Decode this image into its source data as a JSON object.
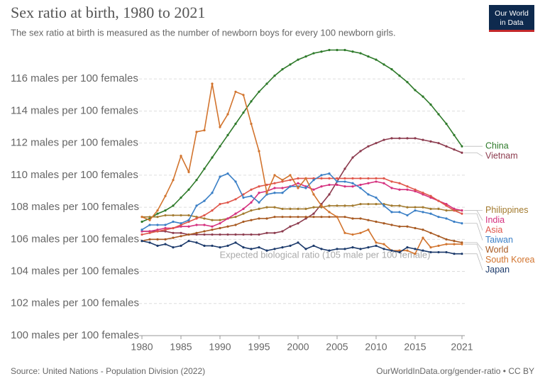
{
  "chart_data": {
    "type": "line",
    "title": "Sex ratio at birth, 1980 to 2021",
    "subtitle": "The sex ratio at birth is measured as the number of newborn boys for every 100 newborn girls.",
    "source": "Source: United Nations - Population Division (2022)",
    "credit": "OurWorldInData.org/gender-ratio • CC BY",
    "logo": [
      "Our World",
      "in Data"
    ],
    "annotation": "Expected biological ratio (105 male per 100 female)",
    "xlim": [
      1980,
      2021
    ],
    "xticks": [
      1980,
      1985,
      1990,
      1995,
      2000,
      2005,
      2010,
      2015,
      2021
    ],
    "ylim": [
      100,
      118
    ],
    "yticks": [
      {
        "value": 100,
        "label": "100 males per 100 females"
      },
      {
        "value": 102,
        "label": "102 males per 100 females"
      },
      {
        "value": 104,
        "label": "104 males per 100 females"
      },
      {
        "value": 106,
        "label": "106 males per 100 females"
      },
      {
        "value": 108,
        "label": "108 males per 100 females"
      },
      {
        "value": 110,
        "label": "110 males per 100 females"
      },
      {
        "value": 112,
        "label": "112 males per 100 females"
      },
      {
        "value": 114,
        "label": "114 males per 100 females"
      },
      {
        "value": 116,
        "label": "116 males per 100 females"
      }
    ],
    "grid": true,
    "x": [
      1980,
      1981,
      1982,
      1983,
      1984,
      1985,
      1986,
      1987,
      1988,
      1989,
      1990,
      1991,
      1992,
      1993,
      1994,
      1995,
      1996,
      1997,
      1998,
      1999,
      2000,
      2001,
      2002,
      2003,
      2004,
      2005,
      2006,
      2007,
      2008,
      2009,
      2010,
      2011,
      2012,
      2013,
      2014,
      2015,
      2016,
      2017,
      2018,
      2019,
      2020,
      2021
    ],
    "series": [
      {
        "name": "China",
        "color": "#2e7a2a",
        "values": [
          107.1,
          107.3,
          107.6,
          107.8,
          108.1,
          108.6,
          109.1,
          109.7,
          110.4,
          111.1,
          111.8,
          112.5,
          113.2,
          113.9,
          114.6,
          115.2,
          115.7,
          116.2,
          116.6,
          116.9,
          117.2,
          117.4,
          117.6,
          117.7,
          117.8,
          117.8,
          117.8,
          117.7,
          117.6,
          117.4,
          117.2,
          116.9,
          116.6,
          116.2,
          115.8,
          115.3,
          114.9,
          114.4,
          113.8,
          113.2,
          112.5,
          111.8
        ]
      },
      {
        "name": "Vietnam",
        "color": "#8c3b4e",
        "values": [
          106.5,
          106.5,
          106.5,
          106.5,
          106.4,
          106.4,
          106.3,
          106.3,
          106.3,
          106.3,
          106.3,
          106.3,
          106.3,
          106.3,
          106.3,
          106.3,
          106.4,
          106.4,
          106.5,
          106.8,
          107.0,
          107.3,
          107.6,
          108.2,
          108.8,
          109.6,
          110.4,
          111.1,
          111.5,
          111.8,
          112.0,
          112.2,
          112.3,
          112.3,
          112.3,
          112.3,
          112.2,
          112.1,
          112.0,
          111.8,
          111.6,
          111.4
        ]
      },
      {
        "name": "Philippines",
        "color": "#a27a2e",
        "values": [
          107.4,
          107.4,
          107.4,
          107.5,
          107.5,
          107.5,
          107.5,
          107.4,
          107.3,
          107.2,
          107.2,
          107.3,
          107.4,
          107.6,
          107.8,
          107.9,
          108.0,
          108.0,
          107.9,
          107.9,
          107.9,
          107.9,
          108.0,
          108.0,
          108.1,
          108.1,
          108.1,
          108.1,
          108.2,
          108.2,
          108.2,
          108.2,
          108.1,
          108.1,
          108.0,
          108.0,
          108.0,
          107.9,
          107.9,
          107.8,
          107.8,
          107.8
        ]
      },
      {
        "name": "India",
        "color": "#d5317f",
        "values": [
          106.5,
          106.5,
          106.6,
          106.7,
          106.7,
          106.8,
          106.8,
          106.9,
          106.9,
          106.8,
          107.0,
          107.3,
          107.6,
          107.9,
          108.3,
          108.9,
          109.0,
          109.2,
          109.2,
          109.3,
          109.5,
          109.3,
          109.1,
          109.3,
          109.4,
          109.4,
          109.3,
          109.3,
          109.4,
          109.5,
          109.6,
          109.5,
          109.2,
          109.1,
          109.1,
          109.0,
          108.8,
          108.6,
          108.4,
          108.2,
          107.9,
          107.8
        ]
      },
      {
        "name": "Asia",
        "color": "#e0564a",
        "values": [
          106.3,
          106.4,
          106.5,
          106.6,
          106.7,
          106.9,
          107.1,
          107.3,
          107.5,
          107.8,
          108.2,
          108.3,
          108.5,
          108.8,
          109.1,
          109.3,
          109.4,
          109.5,
          109.6,
          109.7,
          109.8,
          109.8,
          109.8,
          109.8,
          109.8,
          109.8,
          109.8,
          109.8,
          109.8,
          109.8,
          109.8,
          109.8,
          109.6,
          109.5,
          109.3,
          109.1,
          108.9,
          108.7,
          108.4,
          108.1,
          107.8,
          107.6
        ]
      },
      {
        "name": "Taiwan",
        "color": "#3a7fc6",
        "values": [
          106.6,
          106.9,
          106.9,
          106.9,
          107.1,
          107.0,
          107.2,
          108.1,
          108.4,
          108.9,
          109.9,
          110.1,
          109.6,
          108.6,
          108.7,
          108.3,
          108.8,
          108.9,
          108.9,
          109.3,
          109.3,
          109.2,
          109.7,
          110.0,
          110.1,
          109.6,
          109.6,
          109.5,
          109.2,
          108.8,
          108.6,
          108.1,
          107.7,
          107.7,
          107.5,
          107.8,
          107.7,
          107.6,
          107.4,
          107.3,
          107.1,
          107.0
        ]
      },
      {
        "name": "World",
        "color": "#a85a22",
        "values": [
          105.9,
          106.0,
          106.0,
          106.0,
          106.1,
          106.2,
          106.3,
          106.4,
          106.5,
          106.6,
          106.7,
          106.8,
          106.9,
          107.1,
          107.2,
          107.3,
          107.3,
          107.4,
          107.4,
          107.4,
          107.4,
          107.4,
          107.4,
          107.4,
          107.4,
          107.4,
          107.4,
          107.3,
          107.3,
          107.2,
          107.1,
          107.0,
          106.9,
          106.8,
          106.8,
          106.7,
          106.6,
          106.4,
          106.2,
          106.0,
          105.9,
          105.8
        ]
      },
      {
        "name": "South Korea",
        "color": "#d2742e",
        "values": [
          107.4,
          107.2,
          107.8,
          108.7,
          109.7,
          111.2,
          110.2,
          112.7,
          112.8,
          115.7,
          113.0,
          113.8,
          115.2,
          115.0,
          113.2,
          111.5,
          108.9,
          110.0,
          109.7,
          110.0,
          109.2,
          109.8,
          108.8,
          108.1,
          107.7,
          107.4,
          106.4,
          106.3,
          106.4,
          106.6,
          105.8,
          105.7,
          105.3,
          105.3,
          105.3,
          105.1,
          106.1,
          105.5,
          105.6,
          105.7,
          105.7,
          105.7
        ]
      },
      {
        "name": "Japan",
        "color": "#1c3a6b",
        "values": [
          105.9,
          105.8,
          105.6,
          105.7,
          105.5,
          105.6,
          105.9,
          105.8,
          105.6,
          105.6,
          105.5,
          105.6,
          105.8,
          105.5,
          105.4,
          105.5,
          105.3,
          105.4,
          105.5,
          105.6,
          105.8,
          105.4,
          105.6,
          105.4,
          105.3,
          105.4,
          105.4,
          105.5,
          105.4,
          105.5,
          105.6,
          105.4,
          105.3,
          105.2,
          105.5,
          105.4,
          105.3,
          105.2,
          105.2,
          105.2,
          105.1,
          105.1
        ]
      }
    ]
  }
}
